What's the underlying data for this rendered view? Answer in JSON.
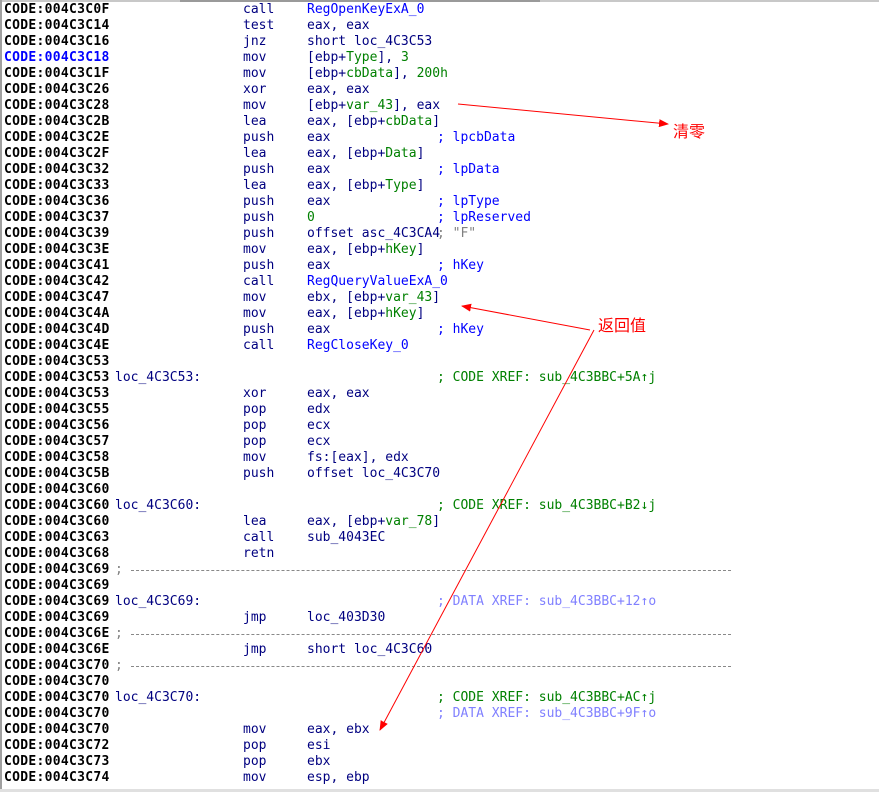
{
  "colors": {
    "address": "#000000",
    "highlight_address": "#0000ff",
    "mnemonic": "#000080",
    "variable": "#008000",
    "function": "#0000ff",
    "code_xref": "#008000",
    "data_xref": "#8080ff",
    "annotation": "#ff0000"
  },
  "annotations": {
    "zero_label": "清零",
    "return_value_label": "返回值"
  },
  "lines": [
    {
      "addr": "CODE:004C3C0F",
      "mn": "call",
      "ops": [
        [
          "RegOpenKeyExA_0",
          "blue"
        ]
      ]
    },
    {
      "addr": "CODE:004C3C14",
      "mn": "test",
      "ops": [
        [
          "eax, eax",
          "navy"
        ]
      ]
    },
    {
      "addr": "CODE:004C3C16",
      "mn": "jnz",
      "ops": [
        [
          "short loc_4C3C53",
          "navy"
        ]
      ]
    },
    {
      "addr": "CODE:004C3C18",
      "hl": true,
      "mn": "mov",
      "ops": [
        [
          "[ebp+",
          "navy"
        ],
        [
          "Type",
          "green"
        ],
        [
          "], ",
          "navy"
        ],
        [
          "3",
          "green"
        ]
      ]
    },
    {
      "addr": "CODE:004C3C1F",
      "mn": "mov",
      "ops": [
        [
          "[ebp+",
          "navy"
        ],
        [
          "cbData",
          "green"
        ],
        [
          "], ",
          "navy"
        ],
        [
          "200h",
          "green"
        ]
      ]
    },
    {
      "addr": "CODE:004C3C26",
      "mn": "xor",
      "ops": [
        [
          "eax, eax",
          "navy"
        ]
      ]
    },
    {
      "addr": "CODE:004C3C28",
      "mn": "mov",
      "ops": [
        [
          "[ebp+",
          "navy"
        ],
        [
          "var_43",
          "green"
        ],
        [
          "], eax",
          "navy"
        ]
      ]
    },
    {
      "addr": "CODE:004C3C2B",
      "mn": "lea",
      "ops": [
        [
          "eax, [ebp+",
          "navy"
        ],
        [
          "cbData",
          "green"
        ],
        [
          "]",
          "navy"
        ]
      ]
    },
    {
      "addr": "CODE:004C3C2E",
      "mn": "push",
      "ops": [
        [
          "eax",
          "navy"
        ]
      ],
      "cm": [
        "; lpcbData",
        "blue"
      ]
    },
    {
      "addr": "CODE:004C3C2F",
      "mn": "lea",
      "ops": [
        [
          "eax, [ebp+",
          "navy"
        ],
        [
          "Data",
          "green"
        ],
        [
          "]",
          "navy"
        ]
      ]
    },
    {
      "addr": "CODE:004C3C32",
      "mn": "push",
      "ops": [
        [
          "eax",
          "navy"
        ]
      ],
      "cm": [
        "; lpData",
        "blue"
      ]
    },
    {
      "addr": "CODE:004C3C33",
      "mn": "lea",
      "ops": [
        [
          "eax, [ebp+",
          "navy"
        ],
        [
          "Type",
          "green"
        ],
        [
          "]",
          "navy"
        ]
      ]
    },
    {
      "addr": "CODE:004C3C36",
      "mn": "push",
      "ops": [
        [
          "eax",
          "navy"
        ]
      ],
      "cm": [
        "; lpType",
        "blue"
      ]
    },
    {
      "addr": "CODE:004C3C37",
      "mn": "push",
      "ops": [
        [
          "0",
          "green"
        ]
      ],
      "cm": [
        "; lpReserved",
        "blue"
      ]
    },
    {
      "addr": "CODE:004C3C39",
      "mn": "push",
      "ops": [
        [
          "offset asc_4C3CA4",
          "navy"
        ]
      ],
      "cm": [
        "; \"F\"",
        "gray"
      ]
    },
    {
      "addr": "CODE:004C3C3E",
      "mn": "mov",
      "ops": [
        [
          "eax, [ebp+",
          "navy"
        ],
        [
          "hKey",
          "green"
        ],
        [
          "]",
          "navy"
        ]
      ]
    },
    {
      "addr": "CODE:004C3C41",
      "mn": "push",
      "ops": [
        [
          "eax",
          "navy"
        ]
      ],
      "cm": [
        "; hKey",
        "blue"
      ]
    },
    {
      "addr": "CODE:004C3C42",
      "mn": "call",
      "ops": [
        [
          "RegQueryValueExA_0",
          "blue"
        ]
      ]
    },
    {
      "addr": "CODE:004C3C47",
      "mn": "mov",
      "ops": [
        [
          "ebx, [ebp+",
          "navy"
        ],
        [
          "var_43",
          "green"
        ],
        [
          "]",
          "navy"
        ]
      ]
    },
    {
      "addr": "CODE:004C3C4A",
      "mn": "mov",
      "ops": [
        [
          "eax, [ebp+",
          "navy"
        ],
        [
          "hKey",
          "green"
        ],
        [
          "]",
          "navy"
        ]
      ]
    },
    {
      "addr": "CODE:004C3C4D",
      "mn": "push",
      "ops": [
        [
          "eax",
          "navy"
        ]
      ],
      "cm": [
        "; hKey",
        "blue"
      ]
    },
    {
      "addr": "CODE:004C3C4E",
      "mn": "call",
      "ops": [
        [
          "RegCloseKey_0",
          "blue"
        ]
      ]
    },
    {
      "addr": "CODE:004C3C53"
    },
    {
      "addr": "CODE:004C3C53",
      "lbl": "loc_4C3C53:",
      "cm": [
        "; CODE XREF: sub_4C3BBC+5A↑j",
        "green"
      ]
    },
    {
      "addr": "CODE:004C3C53",
      "mn": "xor",
      "ops": [
        [
          "eax, eax",
          "navy"
        ]
      ]
    },
    {
      "addr": "CODE:004C3C55",
      "mn": "pop",
      "ops": [
        [
          "edx",
          "navy"
        ]
      ]
    },
    {
      "addr": "CODE:004C3C56",
      "mn": "pop",
      "ops": [
        [
          "ecx",
          "navy"
        ]
      ]
    },
    {
      "addr": "CODE:004C3C57",
      "mn": "pop",
      "ops": [
        [
          "ecx",
          "navy"
        ]
      ]
    },
    {
      "addr": "CODE:004C3C58",
      "mn": "mov",
      "ops": [
        [
          "fs:[eax], edx",
          "navy"
        ]
      ]
    },
    {
      "addr": "CODE:004C3C5B",
      "mn": "push",
      "ops": [
        [
          "offset loc_4C3C70",
          "navy"
        ]
      ]
    },
    {
      "addr": "CODE:004C3C60"
    },
    {
      "addr": "CODE:004C3C60",
      "lbl": "loc_4C3C60:",
      "cm": [
        "; CODE XREF: sub_4C3BBC+B2↓j",
        "green"
      ]
    },
    {
      "addr": "CODE:004C3C60",
      "mn": "lea",
      "ops": [
        [
          "eax, [ebp+",
          "navy"
        ],
        [
          "var_78",
          "green"
        ],
        [
          "]",
          "navy"
        ]
      ]
    },
    {
      "addr": "CODE:004C3C63",
      "mn": "call",
      "ops": [
        [
          "sub_4043EC",
          "navy"
        ]
      ]
    },
    {
      "addr": "CODE:004C3C68",
      "mn": "retn"
    },
    {
      "addr": "CODE:004C3C69",
      "sep": ";"
    },
    {
      "addr": "CODE:004C3C69"
    },
    {
      "addr": "CODE:004C3C69",
      "lbl": "loc_4C3C69:",
      "cm": [
        "; DATA XREF: sub_4C3BBC+12↑o",
        "lav"
      ]
    },
    {
      "addr": "CODE:004C3C69",
      "mn": "jmp",
      "ops": [
        [
          "loc_403D30",
          "navy"
        ]
      ]
    },
    {
      "addr": "CODE:004C3C6E",
      "sep": ";"
    },
    {
      "addr": "CODE:004C3C6E",
      "mn": "jmp",
      "ops": [
        [
          "short loc_4C3C60",
          "navy"
        ]
      ]
    },
    {
      "addr": "CODE:004C3C70",
      "sep": ";"
    },
    {
      "addr": "CODE:004C3C70"
    },
    {
      "addr": "CODE:004C3C70",
      "lbl": "loc_4C3C70:",
      "cm": [
        "; CODE XREF: sub_4C3BBC+AC↑j",
        "green"
      ]
    },
    {
      "addr": "CODE:004C3C70",
      "cm": [
        "; DATA XREF: sub_4C3BBC+9F↑o",
        "lav"
      ]
    },
    {
      "addr": "CODE:004C3C70",
      "mn": "mov",
      "ops": [
        [
          "eax, ebx",
          "navy"
        ]
      ]
    },
    {
      "addr": "CODE:004C3C72",
      "mn": "pop",
      "ops": [
        [
          "esi",
          "navy"
        ]
      ]
    },
    {
      "addr": "CODE:004C3C73",
      "mn": "pop",
      "ops": [
        [
          "ebx",
          "navy"
        ]
      ]
    },
    {
      "addr": "CODE:004C3C74",
      "mn": "mov",
      "ops": [
        [
          "esp, ebp",
          "navy"
        ]
      ]
    }
  ]
}
